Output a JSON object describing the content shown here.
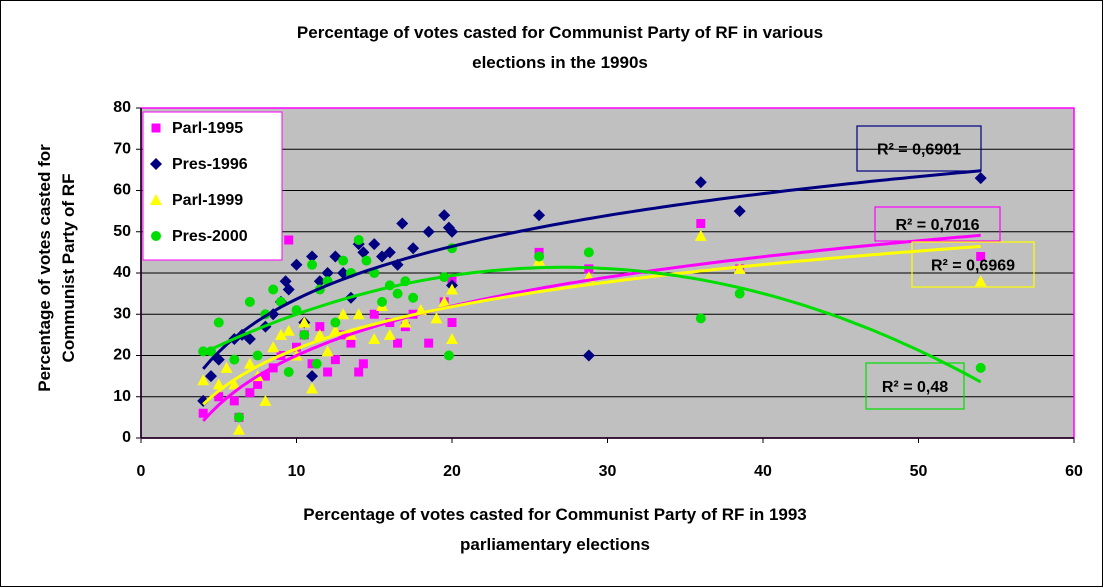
{
  "chart_data": {
    "type": "scatter",
    "title": "Percentage of votes casted for Communist Party of RF in various elections in the 1990s",
    "x_label": "Percentage of votes casted for Communist Party of RF in 1993 parliamentary elections",
    "y_label": "Percentage of votes casted for Communist Party of RF",
    "xlim": [
      0,
      60
    ],
    "xticks": [
      0,
      10,
      20,
      30,
      40,
      50,
      60
    ],
    "ylim": [
      0,
      80
    ],
    "yticks": [
      0,
      10,
      20,
      30,
      40,
      50,
      60,
      70,
      80
    ],
    "grid": true,
    "legend": "upper left",
    "series": [
      {
        "name": "Parl-1995",
        "color": "#ff00ff",
        "marker": "square",
        "trendline": "logarithmic",
        "r2_label": "R² = 0,7016",
        "x": [
          4,
          5,
          6,
          6.3,
          7,
          7.5,
          8,
          8.5,
          9,
          9.5,
          10,
          10.5,
          11,
          11.5,
          12,
          12.5,
          13,
          13.5,
          14,
          14.3,
          15,
          16,
          16.5,
          17,
          17.5,
          18.5,
          19.5,
          20,
          20,
          25.6,
          28.8,
          36,
          38.5,
          54
        ],
        "values": [
          6,
          10,
          9,
          5,
          11,
          13,
          15,
          17,
          20,
          48,
          22,
          25,
          18,
          27,
          16,
          19,
          25,
          23,
          16,
          18,
          30,
          28,
          23,
          27,
          30,
          23,
          33,
          28,
          38,
          45,
          41,
          52,
          41,
          44
        ]
      },
      {
        "name": "Pres-1996",
        "color": "#000080",
        "marker": "diamond",
        "trendline": "logarithmic",
        "r2_label": "R² = 0,6901",
        "x": [
          4,
          4.5,
          5,
          6,
          6.5,
          7,
          8,
          8.5,
          9,
          9.3,
          9.5,
          10,
          10.5,
          11,
          11,
          11.5,
          12,
          12.5,
          13,
          13.5,
          14,
          14.3,
          15,
          15.5,
          16,
          16.5,
          16.8,
          17.5,
          18.5,
          19.5,
          19.8,
          20,
          20,
          25.6,
          28.8,
          36,
          38.5,
          54
        ],
        "values": [
          9,
          15,
          19,
          24,
          25,
          24,
          27,
          30,
          33,
          38,
          36,
          42,
          28,
          44,
          15,
          38,
          40,
          44,
          40,
          34,
          47,
          45,
          47,
          44,
          45,
          42,
          52,
          46,
          50,
          54,
          51,
          50,
          37,
          54,
          20,
          62,
          55,
          63
        ]
      },
      {
        "name": "Parl-1999",
        "color": "#ffff00",
        "marker": "triangle",
        "trendline": "logarithmic",
        "r2_label": "R² = 0,6969",
        "x": [
          4,
          5,
          5.5,
          6,
          6.3,
          7,
          7.5,
          8,
          8.5,
          9,
          9.5,
          10,
          10.5,
          11,
          11.5,
          12,
          12.5,
          13,
          13.5,
          14,
          15,
          15.5,
          16,
          17,
          18,
          19,
          19.5,
          20,
          20,
          25.6,
          28.8,
          36,
          38.5,
          54
        ],
        "values": [
          14,
          13,
          17,
          13,
          2,
          18,
          15,
          9,
          22,
          25,
          26,
          20,
          28,
          12,
          25,
          21,
          26,
          30,
          25,
          30,
          24,
          32,
          25,
          28,
          31,
          29,
          33,
          24,
          36,
          43,
          39,
          49,
          41,
          38
        ]
      },
      {
        "name": "Pres-2000",
        "color": "#00dd00",
        "marker": "circle",
        "trendline": "polynomial",
        "r2_label": "R² = 0,48",
        "x": [
          4,
          4.5,
          5,
          6,
          6.3,
          7,
          7.5,
          8,
          8.5,
          9,
          9.5,
          10,
          10.5,
          11,
          11.3,
          11.5,
          12,
          12.5,
          13,
          13.5,
          14,
          14.5,
          15,
          15.5,
          16,
          16.5,
          17,
          17.5,
          19.5,
          19.8,
          20,
          25.6,
          28.8,
          36,
          38.5,
          54
        ],
        "values": [
          21,
          21,
          28,
          19,
          5,
          33,
          20,
          30,
          36,
          33,
          16,
          31,
          25,
          42,
          18,
          36,
          38,
          28,
          43,
          40,
          48,
          43,
          40,
          33,
          37,
          35,
          38,
          34,
          39,
          20,
          46,
          44,
          45,
          29,
          35,
          17
        ]
      }
    ]
  }
}
